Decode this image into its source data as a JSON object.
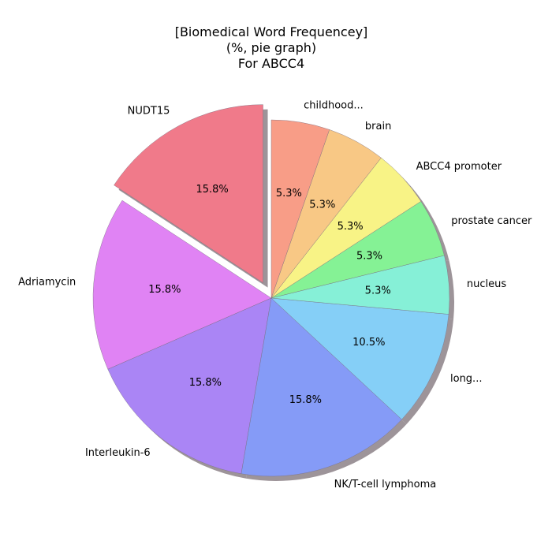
{
  "chart_data": {
    "type": "pie",
    "title_lines": [
      "[Biomedical Word Frequencey]",
      "(%, pie graph)",
      "For ABCC4"
    ],
    "slices": [
      {
        "label": "NUDT15",
        "value": 15.8,
        "pct_label": "15.8%",
        "color": "#f07a8a",
        "exploded": true
      },
      {
        "label": "Adriamycin",
        "value": 15.8,
        "pct_label": "15.8%",
        "color": "#e083f4"
      },
      {
        "label": "Interleukin-6",
        "value": 15.8,
        "pct_label": "15.8%",
        "color": "#aa85f5"
      },
      {
        "label": "NK/T-cell lymphoma",
        "value": 15.8,
        "pct_label": "15.8%",
        "color": "#859bf7"
      },
      {
        "label": "long...",
        "value": 10.5,
        "pct_label": "10.5%",
        "color": "#85cff7"
      },
      {
        "label": "nucleus",
        "value": 5.3,
        "pct_label": "5.3%",
        "color": "#86f0d7"
      },
      {
        "label": "prostate cancer",
        "value": 5.3,
        "pct_label": "5.3%",
        "color": "#85f295"
      },
      {
        "label": "ABCC4 promoter",
        "value": 5.3,
        "pct_label": "5.3%",
        "color": "#f8f386"
      },
      {
        "label": "brain",
        "value": 5.3,
        "pct_label": "5.3%",
        "color": "#f8c885"
      },
      {
        "label": "childhood...",
        "value": 5.3,
        "pct_label": "5.3%",
        "color": "#f89d87"
      }
    ],
    "start_angle_deg": 90,
    "direction": "counterclockwise",
    "shadow": true
  }
}
